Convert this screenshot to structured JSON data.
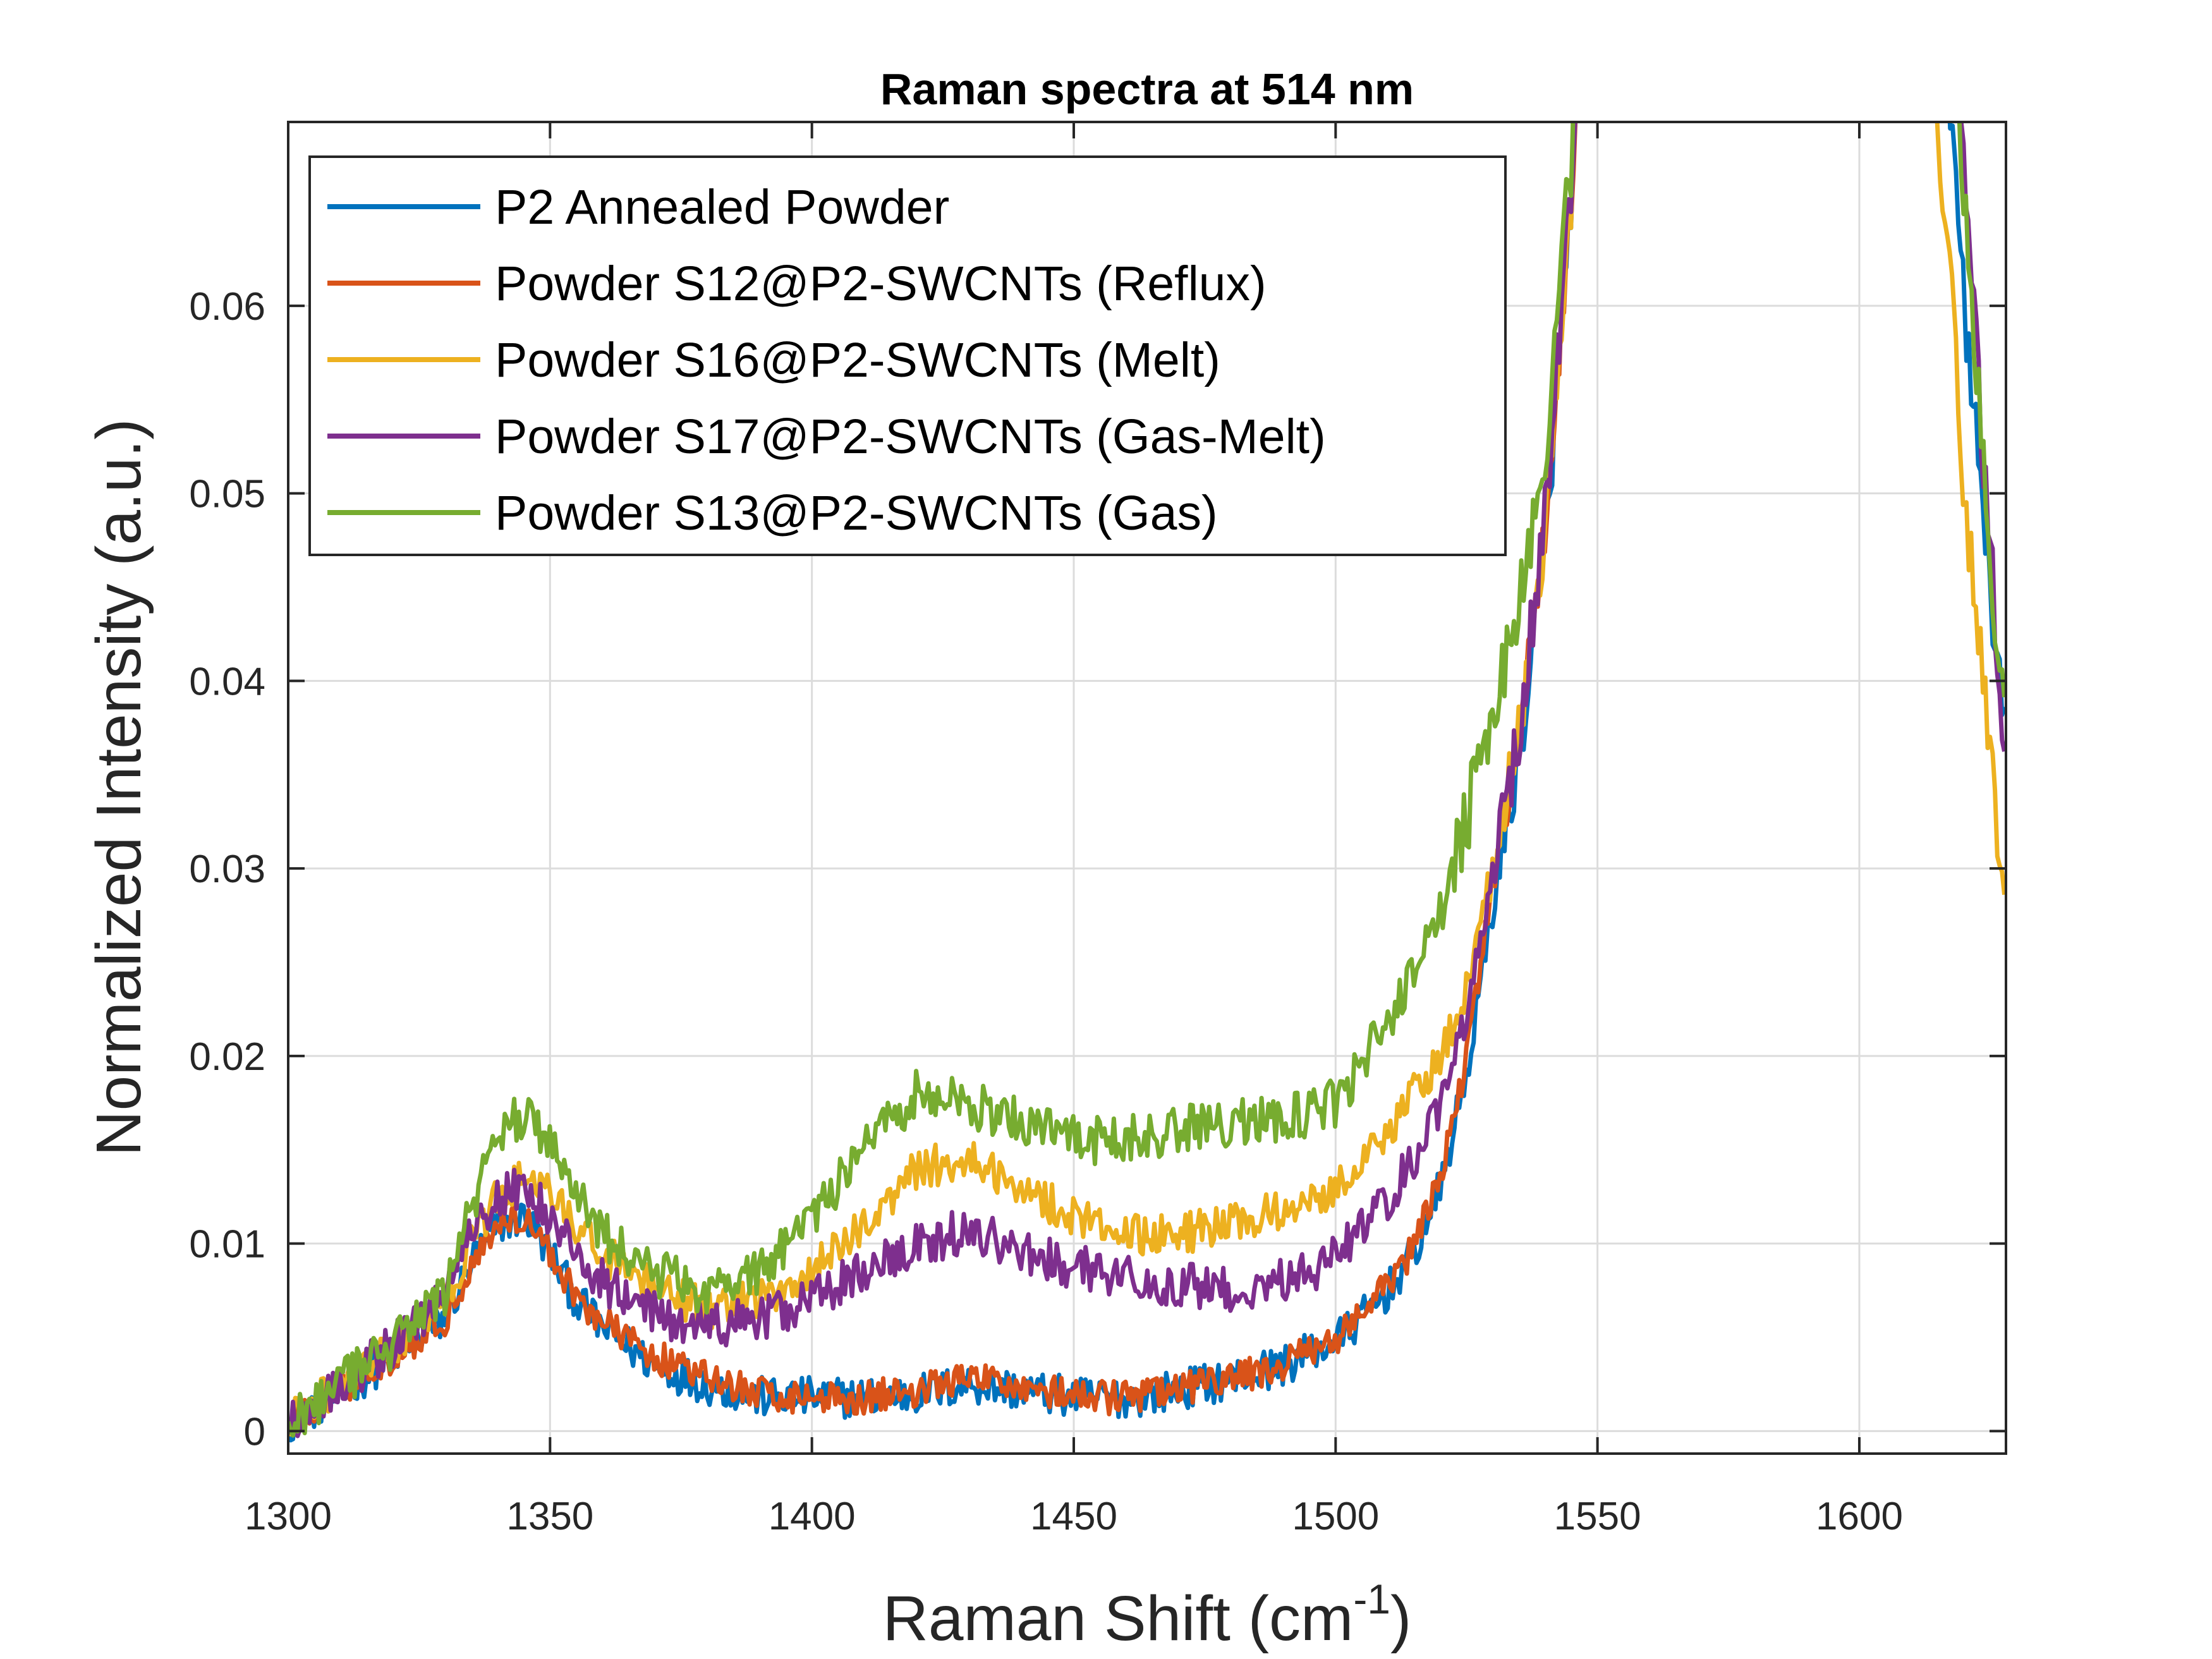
{
  "chart_data": {
    "type": "line",
    "title": "Raman spectra at 514 nm",
    "xlabel": "Raman Shift (cm",
    "xlabel_superscript": "-1",
    "xlabel_suffix": ")",
    "ylabel": "Normalized Intensity (a.u.)",
    "xlim": [
      1300,
      1628
    ],
    "ylim": [
      -0.0012,
      0.0698
    ],
    "xticks": [
      1300,
      1350,
      1400,
      1450,
      1500,
      1550,
      1600
    ],
    "yticks": [
      0,
      0.01,
      0.02,
      0.03,
      0.04,
      0.05,
      0.06
    ],
    "xtick_labels": [
      "1300",
      "1350",
      "1400",
      "1450",
      "1500",
      "1550",
      "1600"
    ],
    "ytick_labels": [
      "0",
      "0.01",
      "0.02",
      "0.03",
      "0.04",
      "0.05",
      "0.06"
    ],
    "grid": true,
    "legend_position": "top-left",
    "series": [
      {
        "name": "P2 Annealed Powder",
        "color": "#0072BD",
        "noise": 0.0011,
        "x": [
          1300,
          1310,
          1320,
          1330,
          1335,
          1340,
          1345,
          1350,
          1355,
          1360,
          1370,
          1380,
          1390,
          1400,
          1410,
          1420,
          1430,
          1440,
          1450,
          1460,
          1470,
          1480,
          1490,
          1500,
          1505,
          1510,
          1515,
          1520,
          1525,
          1530,
          1535,
          1540,
          1545,
          1547,
          1616,
          1618,
          1620,
          1625,
          1628
        ],
        "y": [
          0.0005,
          0.002,
          0.004,
          0.006,
          0.009,
          0.011,
          0.0115,
          0.0095,
          0.007,
          0.0055,
          0.0035,
          0.0025,
          0.0018,
          0.0018,
          0.0018,
          0.002,
          0.0025,
          0.0022,
          0.0018,
          0.0018,
          0.0022,
          0.0028,
          0.0035,
          0.0048,
          0.006,
          0.0075,
          0.0095,
          0.013,
          0.019,
          0.028,
          0.036,
          0.047,
          0.066,
          0.075,
          0.075,
          0.068,
          0.06,
          0.045,
          0.036
        ]
      },
      {
        "name": "Powder S12@P2-SWCNTs (Reflux)",
        "color": "#D95319",
        "noise": 0.0009,
        "x": [
          1300,
          1310,
          1320,
          1330,
          1335,
          1340,
          1345,
          1350,
          1355,
          1360,
          1370,
          1380,
          1390,
          1400,
          1410,
          1420,
          1430,
          1440,
          1450,
          1460,
          1470,
          1480,
          1490,
          1500,
          1505,
          1510,
          1515,
          1520,
          1525,
          1530,
          1535,
          1540,
          1545,
          1547
        ],
        "y": [
          0.0005,
          0.002,
          0.004,
          0.006,
          0.009,
          0.011,
          0.0115,
          0.0095,
          0.0072,
          0.0058,
          0.004,
          0.0028,
          0.002,
          0.0018,
          0.0018,
          0.0022,
          0.0028,
          0.0025,
          0.0018,
          0.0018,
          0.0022,
          0.0028,
          0.0035,
          0.005,
          0.0062,
          0.0078,
          0.0098,
          0.0135,
          0.02,
          0.029,
          0.037,
          0.048,
          0.066,
          0.075
        ]
      },
      {
        "name": "Powder S16@P2-SWCNTs (Melt)",
        "color": "#EDB120",
        "noise": 0.0011,
        "x": [
          1300,
          1310,
          1320,
          1330,
          1335,
          1340,
          1345,
          1350,
          1355,
          1360,
          1370,
          1380,
          1390,
          1400,
          1410,
          1420,
          1430,
          1440,
          1450,
          1460,
          1470,
          1480,
          1490,
          1500,
          1505,
          1510,
          1515,
          1520,
          1525,
          1530,
          1535,
          1540,
          1545,
          1547,
          1612,
          1615,
          1618,
          1620,
          1625,
          1628
        ],
        "y": [
          0.0005,
          0.0025,
          0.0045,
          0.007,
          0.01,
          0.0125,
          0.0135,
          0.0125,
          0.011,
          0.0095,
          0.0075,
          0.0065,
          0.007,
          0.0085,
          0.011,
          0.014,
          0.0145,
          0.013,
          0.0115,
          0.0105,
          0.0105,
          0.011,
          0.0118,
          0.013,
          0.0145,
          0.016,
          0.018,
          0.02,
          0.0235,
          0.03,
          0.037,
          0.048,
          0.066,
          0.075,
          0.075,
          0.069,
          0.06,
          0.05,
          0.036,
          0.027
        ]
      },
      {
        "name": "Powder S17@P2-SWCNTs (Gas-Melt)",
        "color": "#7E2F8E",
        "noise": 0.0012,
        "x": [
          1300,
          1310,
          1320,
          1330,
          1335,
          1340,
          1345,
          1350,
          1355,
          1360,
          1370,
          1380,
          1390,
          1400,
          1410,
          1420,
          1430,
          1440,
          1450,
          1460,
          1470,
          1480,
          1490,
          1500,
          1505,
          1510,
          1515,
          1520,
          1525,
          1530,
          1535,
          1540,
          1545,
          1547,
          1617,
          1619,
          1621,
          1625,
          1628
        ],
        "y": [
          0.0005,
          0.0025,
          0.0045,
          0.0075,
          0.011,
          0.0125,
          0.013,
          0.0115,
          0.0095,
          0.008,
          0.0062,
          0.0055,
          0.006,
          0.007,
          0.0085,
          0.0098,
          0.0108,
          0.0095,
          0.0088,
          0.0082,
          0.0078,
          0.0075,
          0.008,
          0.0092,
          0.0108,
          0.0125,
          0.0145,
          0.0175,
          0.0225,
          0.03,
          0.037,
          0.049,
          0.067,
          0.075,
          0.075,
          0.07,
          0.063,
          0.047,
          0.035
        ]
      },
      {
        "name": "Powder S13@P2-SWCNTs (Gas)",
        "color": "#77AC30",
        "noise": 0.0013,
        "x": [
          1300,
          1310,
          1320,
          1330,
          1335,
          1340,
          1345,
          1350,
          1355,
          1360,
          1370,
          1380,
          1390,
          1400,
          1410,
          1420,
          1430,
          1440,
          1450,
          1460,
          1470,
          1480,
          1490,
          1500,
          1505,
          1510,
          1515,
          1520,
          1525,
          1530,
          1535,
          1540,
          1545,
          1547,
          1617,
          1619,
          1621,
          1625,
          1628
        ],
        "y": [
          0.0005,
          0.0025,
          0.0045,
          0.0075,
          0.012,
          0.0155,
          0.017,
          0.0155,
          0.0125,
          0.0105,
          0.0085,
          0.0075,
          0.0085,
          0.0115,
          0.015,
          0.018,
          0.0175,
          0.0165,
          0.0155,
          0.0155,
          0.016,
          0.0165,
          0.0165,
          0.0175,
          0.0195,
          0.022,
          0.0245,
          0.0275,
          0.0325,
          0.0385,
          0.044,
          0.052,
          0.068,
          0.075,
          0.075,
          0.07,
          0.062,
          0.046,
          0.037
        ]
      }
    ]
  }
}
